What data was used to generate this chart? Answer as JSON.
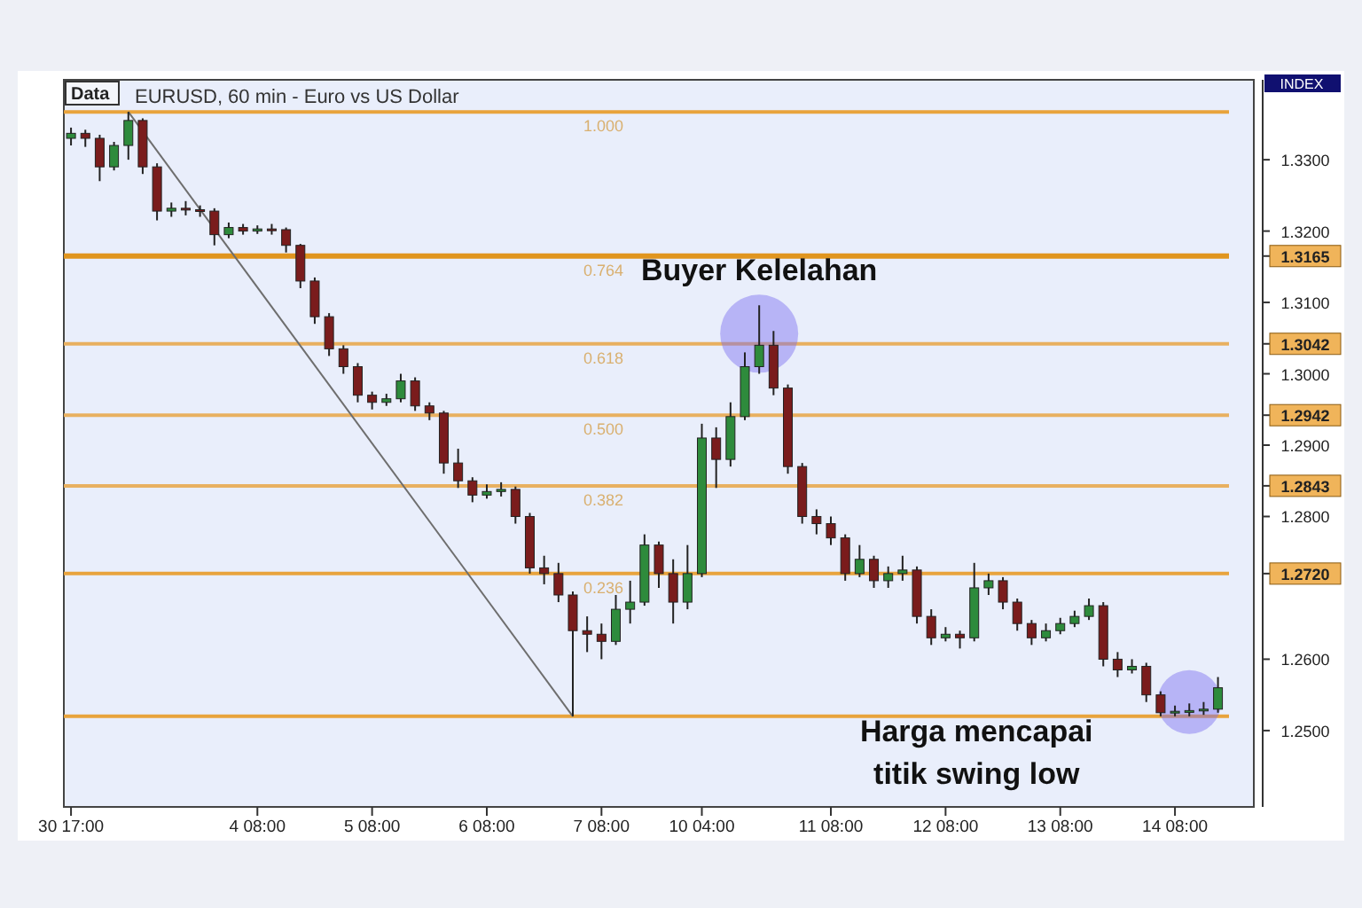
{
  "chart_data": {
    "type": "candlestick",
    "title": "EURUSD, 60 min - Euro vs US Dollar",
    "categories": [
      "30 17:00",
      null,
      null,
      null,
      null,
      null,
      null,
      null,
      null,
      null,
      null,
      null,
      null,
      "4 08:00",
      null,
      null,
      null,
      null,
      null,
      null,
      null,
      "5 08:00",
      null,
      null,
      null,
      null,
      null,
      null,
      null,
      "6 08:00",
      null,
      null,
      null,
      null,
      null,
      null,
      null,
      "7 08:00",
      null,
      null,
      null,
      null,
      null,
      null,
      "10 04:00",
      null,
      null,
      null,
      null,
      null,
      null,
      null,
      null,
      "11 08:00",
      null,
      null,
      null,
      null,
      null,
      null,
      null,
      "12 08:00",
      null,
      null,
      null,
      null,
      null,
      null,
      null,
      "13 08:00",
      null,
      null,
      null,
      null,
      null,
      null,
      null,
      "14 08:00",
      null,
      null,
      null
    ],
    "ylim": [
      1.2393,
      1.3412
    ],
    "yticks": [
      {
        "value": 1.25,
        "label": "1.2500"
      },
      {
        "value": 1.26,
        "label": "1.2600"
      },
      {
        "value": 1.272,
        "label": "1.2720"
      },
      {
        "value": 1.28,
        "label": "1.2800"
      },
      1.2843,
      {
        "value": 1.29,
        "label": "1.2900"
      },
      1.2942,
      {
        "value": 1.3,
        "label": "1.3000"
      },
      1.3042,
      {
        "value": 1.31,
        "label": "1.3100"
      },
      1.3165,
      {
        "value": 1.32,
        "label": "1.3200"
      },
      {
        "value": 1.33,
        "label": "1.3300"
      }
    ],
    "ohlc": [
      [
        1.333,
        1.3345,
        1.332,
        1.3337
      ],
      [
        1.3337,
        1.3342,
        1.3318,
        1.333
      ],
      [
        1.333,
        1.3335,
        1.327,
        1.329
      ],
      [
        1.329,
        1.3325,
        1.3285,
        1.332
      ],
      [
        1.332,
        1.3367,
        1.33,
        1.3355
      ],
      [
        1.3355,
        1.3358,
        1.328,
        1.329
      ],
      [
        1.329,
        1.3295,
        1.3215,
        1.3228
      ],
      [
        1.3228,
        1.324,
        1.322,
        1.3232
      ],
      [
        1.3232,
        1.3242,
        1.3222,
        1.323
      ],
      [
        1.323,
        1.3236,
        1.322,
        1.3228
      ],
      [
        1.3228,
        1.3232,
        1.318,
        1.3195
      ],
      [
        1.3195,
        1.3212,
        1.319,
        1.3205
      ],
      [
        1.3205,
        1.321,
        1.3195,
        1.32
      ],
      [
        1.32,
        1.3208,
        1.3196,
        1.3203
      ],
      [
        1.3203,
        1.321,
        1.3195,
        1.3202
      ],
      [
        1.3202,
        1.3205,
        1.317,
        1.318
      ],
      [
        1.318,
        1.3182,
        1.312,
        1.313
      ],
      [
        1.313,
        1.3135,
        1.307,
        1.308
      ],
      [
        1.308,
        1.3085,
        1.3025,
        1.3035
      ],
      [
        1.3035,
        1.304,
        1.3,
        1.301
      ],
      [
        1.301,
        1.3015,
        1.296,
        1.297
      ],
      [
        1.297,
        1.2975,
        1.295,
        1.296
      ],
      [
        1.296,
        1.2972,
        1.2955,
        1.2965
      ],
      [
        1.2965,
        1.3,
        1.296,
        1.299
      ],
      [
        1.299,
        1.2995,
        1.2948,
        1.2955
      ],
      [
        1.2955,
        1.296,
        1.2935,
        1.2945
      ],
      [
        1.2945,
        1.2948,
        1.286,
        1.2875
      ],
      [
        1.2875,
        1.2895,
        1.284,
        1.285
      ],
      [
        1.285,
        1.2855,
        1.282,
        1.283
      ],
      [
        1.283,
        1.2845,
        1.2825,
        1.2835
      ],
      [
        1.2835,
        1.2848,
        1.2828,
        1.2838
      ],
      [
        1.2838,
        1.2842,
        1.279,
        1.28
      ],
      [
        1.28,
        1.2805,
        1.272,
        1.2728
      ],
      [
        1.2728,
        1.2745,
        1.2705,
        1.272
      ],
      [
        1.272,
        1.2735,
        1.268,
        1.269
      ],
      [
        1.269,
        1.2695,
        1.252,
        1.264
      ],
      [
        1.264,
        1.266,
        1.261,
        1.2635
      ],
      [
        1.2635,
        1.265,
        1.26,
        1.2625
      ],
      [
        1.2625,
        1.269,
        1.262,
        1.267
      ],
      [
        1.267,
        1.271,
        1.265,
        1.268
      ],
      [
        1.268,
        1.2775,
        1.2675,
        1.276
      ],
      [
        1.276,
        1.2765,
        1.27,
        1.272
      ],
      [
        1.272,
        1.274,
        1.265,
        1.268
      ],
      [
        1.268,
        1.276,
        1.267,
        1.272
      ],
      [
        1.272,
        1.293,
        1.2715,
        1.291
      ],
      [
        1.291,
        1.2925,
        1.284,
        1.288
      ],
      [
        1.288,
        1.296,
        1.287,
        1.294
      ],
      [
        1.294,
        1.303,
        1.2935,
        1.301
      ],
      [
        1.301,
        1.3096,
        1.3,
        1.304
      ],
      [
        1.304,
        1.306,
        1.297,
        1.298
      ],
      [
        1.298,
        1.2985,
        1.286,
        1.287
      ],
      [
        1.287,
        1.2875,
        1.279,
        1.28
      ],
      [
        1.28,
        1.281,
        1.2775,
        1.279
      ],
      [
        1.279,
        1.28,
        1.276,
        1.277
      ],
      [
        1.277,
        1.2775,
        1.271,
        1.272
      ],
      [
        1.272,
        1.276,
        1.2715,
        1.274
      ],
      [
        1.274,
        1.2745,
        1.27,
        1.271
      ],
      [
        1.271,
        1.273,
        1.27,
        1.272
      ],
      [
        1.272,
        1.2745,
        1.271,
        1.2725
      ],
      [
        1.2725,
        1.273,
        1.265,
        1.266
      ],
      [
        1.266,
        1.267,
        1.262,
        1.263
      ],
      [
        1.263,
        1.2645,
        1.2625,
        1.2635
      ],
      [
        1.2635,
        1.264,
        1.2615,
        1.263
      ],
      [
        1.263,
        1.2735,
        1.2625,
        1.27
      ],
      [
        1.27,
        1.272,
        1.269,
        1.271
      ],
      [
        1.271,
        1.2715,
        1.267,
        1.268
      ],
      [
        1.268,
        1.2685,
        1.264,
        1.265
      ],
      [
        1.265,
        1.2655,
        1.262,
        1.263
      ],
      [
        1.263,
        1.265,
        1.2625,
        1.264
      ],
      [
        1.264,
        1.2658,
        1.2635,
        1.265
      ],
      [
        1.265,
        1.2668,
        1.2645,
        1.266
      ],
      [
        1.266,
        1.2685,
        1.2655,
        1.2675
      ],
      [
        1.2675,
        1.268,
        1.259,
        1.26
      ],
      [
        1.26,
        1.261,
        1.2575,
        1.2585
      ],
      [
        1.2585,
        1.26,
        1.258,
        1.259
      ],
      [
        1.259,
        1.2595,
        1.254,
        1.255
      ],
      [
        1.255,
        1.2555,
        1.252,
        1.2525
      ],
      [
        1.2525,
        1.2535,
        1.252,
        1.2527
      ],
      [
        1.2527,
        1.2538,
        1.252,
        1.2528
      ],
      [
        1.2528,
        1.254,
        1.2522,
        1.253
      ],
      [
        1.253,
        1.2575,
        1.2525,
        1.256
      ]
    ],
    "colors": [
      "#2e8b3c",
      "#7a1c1c",
      "#7a1c1c",
      "#2e8b3c",
      "#2e8b3c",
      "#7a1c1c",
      "#7a1c1c",
      "#2e8b3c",
      "#7a1c1c",
      "#7a1c1c",
      "#7a1c1c",
      "#2e8b3c",
      "#7a1c1c",
      "#2e8b3c",
      "#7a1c1c",
      "#7a1c1c",
      "#7a1c1c",
      "#7a1c1c",
      "#7a1c1c",
      "#7a1c1c",
      "#7a1c1c",
      "#7a1c1c",
      "#2e8b3c",
      "#2e8b3c",
      "#7a1c1c",
      "#7a1c1c",
      "#7a1c1c",
      "#7a1c1c",
      "#7a1c1c",
      "#2e8b3c",
      "#2e8b3c",
      "#7a1c1c",
      "#7a1c1c",
      "#7a1c1c",
      "#7a1c1c",
      "#7a1c1c",
      "#7a1c1c",
      "#7a1c1c",
      "#2e8b3c",
      "#2e8b3c",
      "#2e8b3c",
      "#7a1c1c",
      "#7a1c1c",
      "#2e8b3c",
      "#2e8b3c",
      "#7a1c1c",
      "#2e8b3c",
      "#2e8b3c",
      "#2e8b3c",
      "#7a1c1c",
      "#7a1c1c",
      "#7a1c1c",
      "#7a1c1c",
      "#7a1c1c",
      "#7a1c1c",
      "#2e8b3c",
      "#7a1c1c",
      "#2e8b3c",
      "#2e8b3c",
      "#7a1c1c",
      "#7a1c1c",
      "#2e8b3c",
      "#7a1c1c",
      "#2e8b3c",
      "#2e8b3c",
      "#7a1c1c",
      "#7a1c1c",
      "#7a1c1c",
      "#2e8b3c",
      "#2e8b3c",
      "#2e8b3c",
      "#2e8b3c",
      "#7a1c1c",
      "#7a1c1c",
      "#2e8b3c",
      "#7a1c1c",
      "#7a1c1c",
      "#2e8b3c",
      "#2e8b3c",
      "#2e8b3c",
      "#2e8b3c"
    ],
    "ref_lines": [
      {
        "axis": "y",
        "value": 1.3367,
        "color": "#e8a33c"
      },
      {
        "axis": "y",
        "value": 1.3165,
        "color": "#e0951f"
      },
      {
        "axis": "y",
        "value": 1.3042,
        "color": "#e8b060"
      },
      {
        "axis": "y",
        "value": 1.2942,
        "color": "#e8b060"
      },
      {
        "axis": "y",
        "value": 1.2843,
        "color": "#e8b060"
      },
      {
        "axis": "y",
        "value": 1.272,
        "color": "#e8a33c"
      },
      {
        "axis": "y",
        "value": 1.252,
        "color": "#e8a33c"
      }
    ],
    "annotations": [
      "Data",
      "INDEX",
      {
        "text": "1.000",
        "y": 1.3367
      },
      {
        "text": "0.764",
        "y": 1.3165
      },
      {
        "text": "0.618",
        "y": 1.3042
      },
      {
        "text": "0.500",
        "y": 1.2942
      },
      {
        "text": "0.382",
        "y": 1.2843
      },
      {
        "text": "0.236",
        "y": 1.272
      },
      "Buyer Kelelahan",
      "Harga mencapai titik swing low"
    ]
  }
}
